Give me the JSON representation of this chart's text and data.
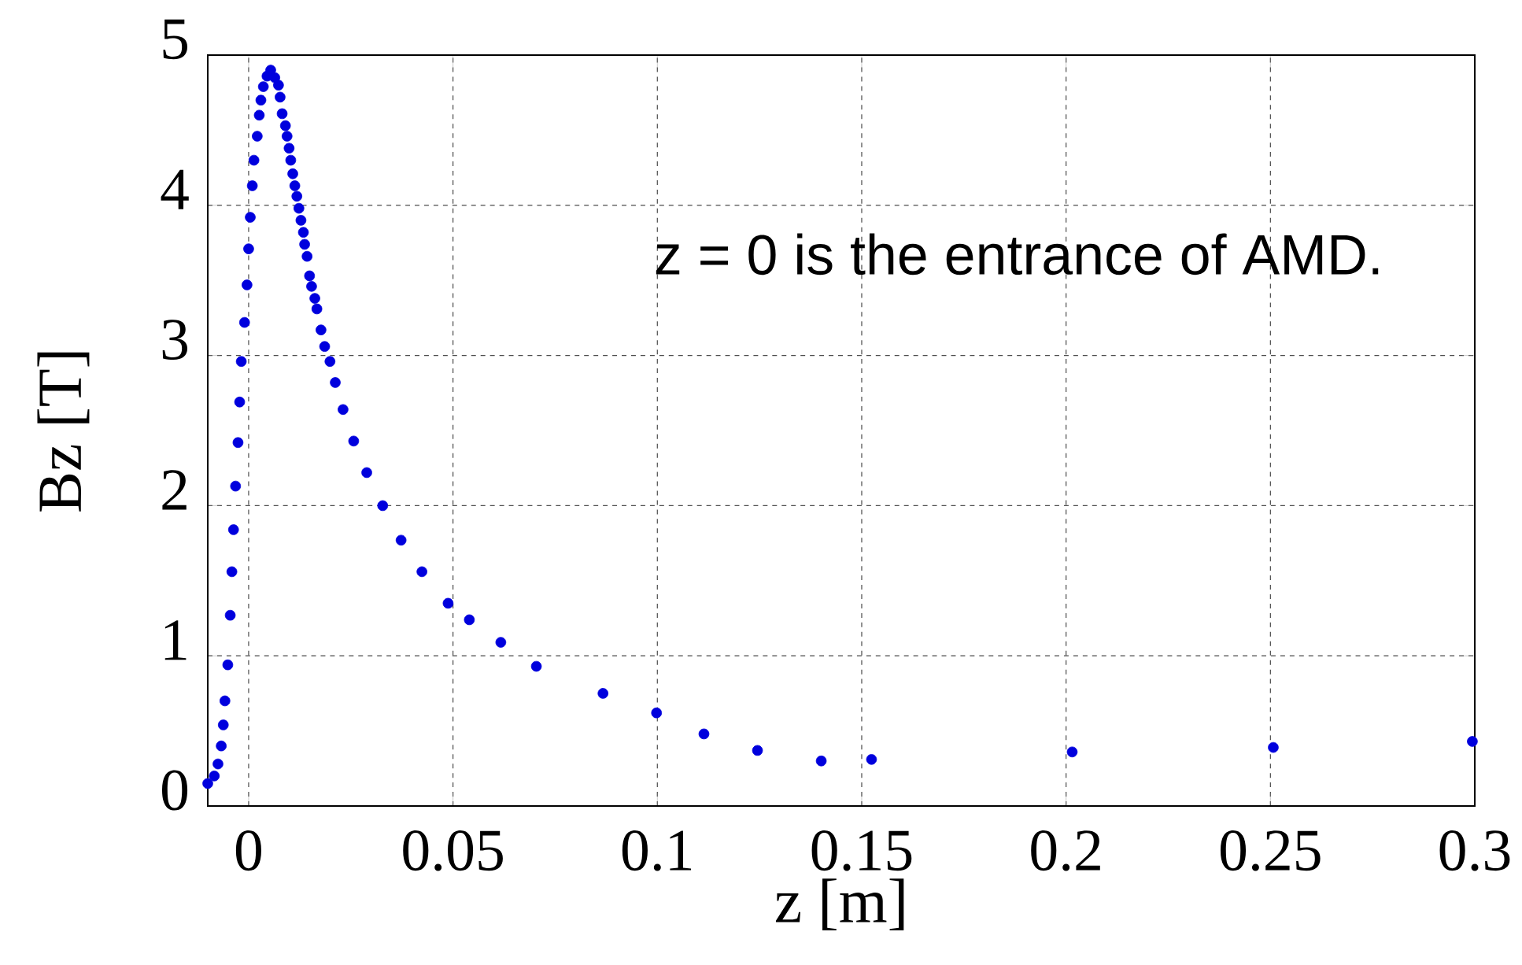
{
  "chart_data": {
    "type": "scatter",
    "xlabel": "z [m]",
    "ylabel": "Bz [T]",
    "annotations": [
      "z = 0 is the entrance of AMD."
    ],
    "xlim": [
      -0.01,
      0.3
    ],
    "ylim": [
      0,
      5
    ],
    "xticks": [
      0,
      0.05,
      0.1,
      0.15,
      0.2,
      0.25,
      0.3
    ],
    "yticks": [
      0,
      1,
      2,
      3,
      4,
      5
    ],
    "grid": true,
    "marker": "circle",
    "series": [
      {
        "color": "#0000dd",
        "x": [
          -0.01,
          -0.0084,
          -0.0075,
          -0.0067,
          -0.0062,
          -0.0058,
          -0.0051,
          -0.0045,
          -0.0041,
          -0.0037,
          -0.0032,
          -0.0026,
          -0.0022,
          -0.0018,
          -0.001,
          -0.0004,
          0.0,
          0.0004,
          0.0009,
          0.0013,
          0.0021,
          0.0026,
          0.003,
          0.0036,
          0.0045,
          0.0054,
          0.0064,
          0.0073,
          0.0077,
          0.0082,
          0.009,
          0.0094,
          0.0099,
          0.0103,
          0.0108,
          0.0113,
          0.0118,
          0.0123,
          0.0128,
          0.0134,
          0.0137,
          0.0143,
          0.0149,
          0.0154,
          0.0162,
          0.0167,
          0.0177,
          0.0186,
          0.0199,
          0.0212,
          0.0231,
          0.0257,
          0.0289,
          0.0328,
          0.0373,
          0.0424,
          0.0488,
          0.054,
          0.0617,
          0.0704,
          0.0867,
          0.0998,
          0.1114,
          0.1245,
          0.1401,
          0.1524,
          0.2015,
          0.2507,
          0.2994
        ],
        "values": [
          0.15,
          0.2,
          0.28,
          0.4,
          0.54,
          0.7,
          0.94,
          1.27,
          1.56,
          1.84,
          2.13,
          2.42,
          2.69,
          2.96,
          3.22,
          3.47,
          3.71,
          3.92,
          4.13,
          4.3,
          4.46,
          4.6,
          4.7,
          4.79,
          4.86,
          4.9,
          4.85,
          4.8,
          4.72,
          4.61,
          4.53,
          4.46,
          4.38,
          4.3,
          4.21,
          4.13,
          4.06,
          3.98,
          3.9,
          3.82,
          3.74,
          3.66,
          3.53,
          3.46,
          3.38,
          3.31,
          3.17,
          3.06,
          2.96,
          2.82,
          2.64,
          2.43,
          2.22,
          2.0,
          1.77,
          1.56,
          1.35,
          1.24,
          1.09,
          0.93,
          0.75,
          0.62,
          0.48,
          0.37,
          0.3,
          0.31,
          0.36,
          0.39,
          0.43
        ]
      }
    ]
  }
}
